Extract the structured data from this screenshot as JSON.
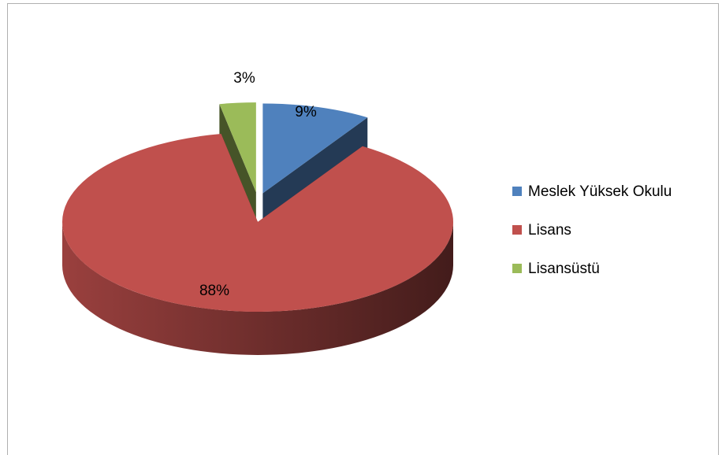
{
  "chart_data": {
    "type": "pie",
    "three_d": true,
    "exploded": true,
    "categories": [
      "Meslek Yüksek Okulu",
      "Lisans",
      "Lisansüstü"
    ],
    "values": [
      9,
      88,
      3
    ],
    "value_labels": [
      "9%",
      "88%",
      "3%"
    ],
    "colors": [
      "#4f81bd",
      "#c0504d",
      "#9bbb59"
    ],
    "legend": "right"
  }
}
